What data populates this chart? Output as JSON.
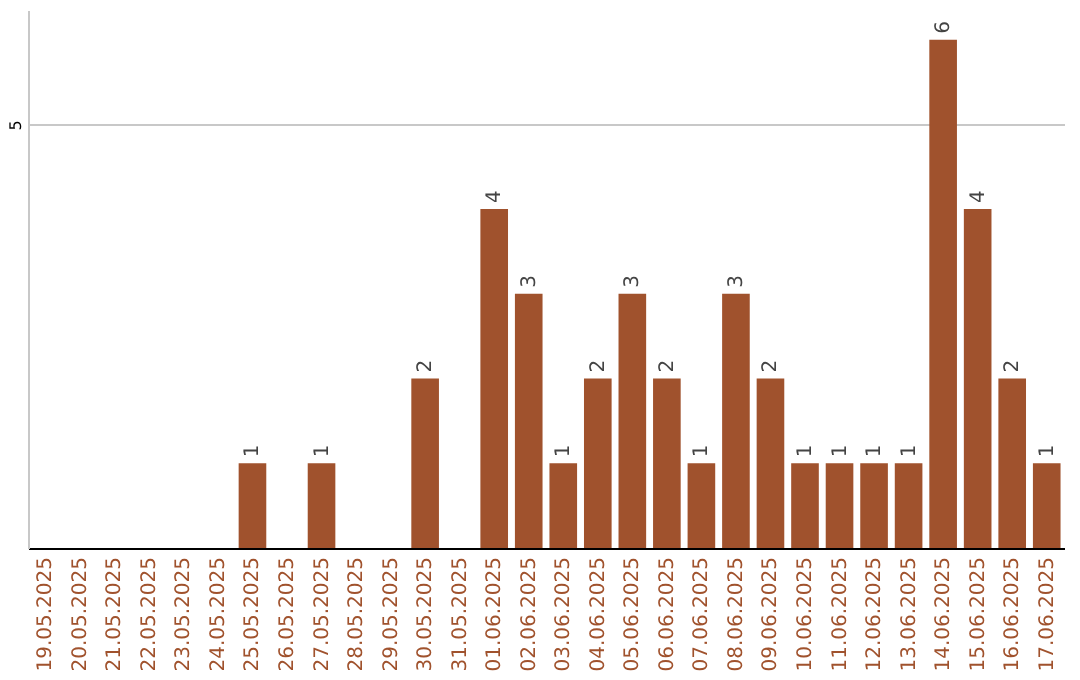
{
  "chart_data": {
    "type": "bar",
    "categories": [
      "19.05.2025",
      "20.05.2025",
      "21.05.2025",
      "22.05.2025",
      "23.05.2025",
      "24.05.2025",
      "25.05.2025",
      "26.05.2025",
      "27.05.2025",
      "28.05.2025",
      "29.05.2025",
      "30.05.2025",
      "31.05.2025",
      "01.06.2025",
      "02.06.2025",
      "03.06.2025",
      "04.06.2025",
      "05.06.2025",
      "06.06.2025",
      "07.06.2025",
      "08.06.2025",
      "09.06.2025",
      "10.06.2025",
      "11.06.2025",
      "12.06.2025",
      "13.06.2025",
      "14.06.2025",
      "15.06.2025",
      "16.06.2025",
      "17.06.2025"
    ],
    "values": [
      null,
      null,
      null,
      null,
      null,
      null,
      1,
      null,
      1,
      null,
      null,
      2,
      null,
      4,
      3,
      1,
      2,
      3,
      2,
      1,
      3,
      2,
      1,
      1,
      1,
      1,
      6,
      4,
      2,
      1
    ],
    "color": "#a0522d",
    "ylim": [
      0,
      6.35
    ],
    "yticks": [
      5
    ],
    "grid": "y",
    "data_labels": true
  }
}
